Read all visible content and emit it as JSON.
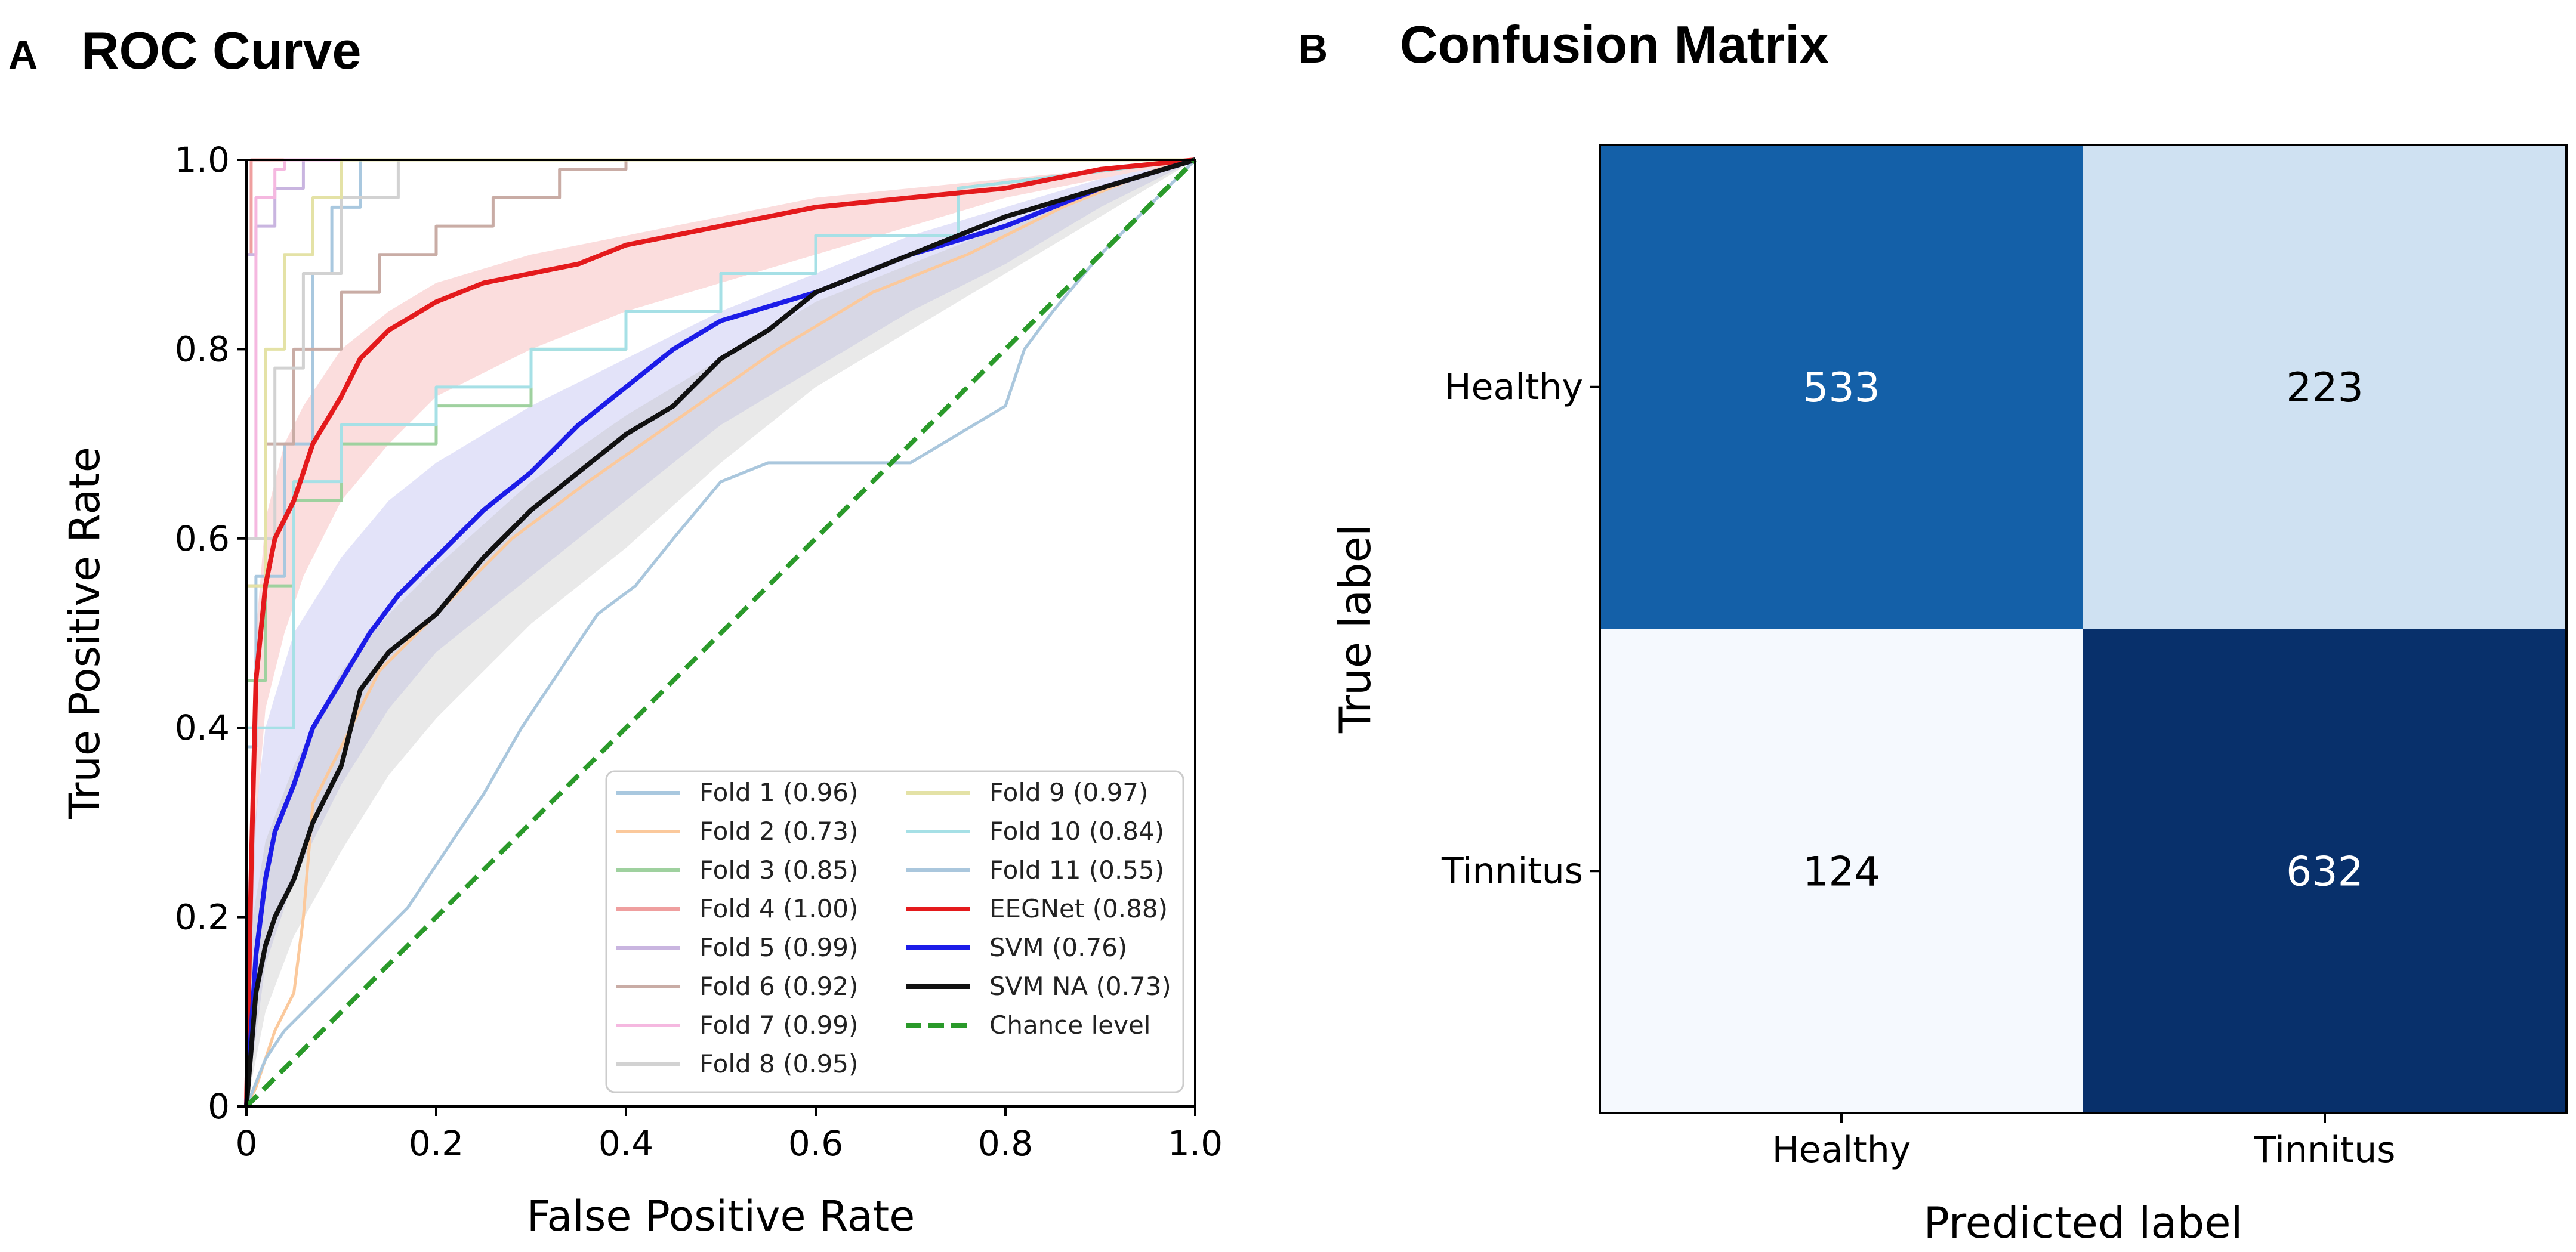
{
  "panels": [
    {
      "letter": "A",
      "title": "ROC Curve"
    },
    {
      "letter": "B",
      "title": "Confusion Matrix"
    }
  ],
  "chart_data": [
    {
      "type": "line",
      "title": "ROC Curve",
      "xlabel": "False Positive Rate",
      "ylabel": "True Positive Rate",
      "xlim": [
        0,
        1
      ],
      "ylim": [
        0,
        1
      ],
      "xticks": [
        0,
        0.2,
        0.4,
        0.6,
        0.8,
        1.0
      ],
      "yticks": [
        0,
        0.2,
        0.4,
        0.6,
        0.8,
        1.0
      ],
      "xtick_labels": [
        "0",
        "0.2",
        "0.4",
        "0.6",
        "0.8",
        "1.0"
      ],
      "ytick_labels": [
        "0",
        "0.2",
        "0.4",
        "0.6",
        "0.8",
        "1.0"
      ],
      "legend_position": "lower-right",
      "bands": [
        {
          "series": "EEGNet (0.88)",
          "color": "#f4a6a6",
          "x": [
            0,
            0.01,
            0.02,
            0.04,
            0.06,
            0.08,
            0.1,
            0.15,
            0.2,
            0.3,
            0.4,
            0.5,
            0.6,
            0.7,
            0.8,
            0.9,
            1.0
          ],
          "upper": [
            0,
            0.5,
            0.62,
            0.7,
            0.74,
            0.77,
            0.8,
            0.84,
            0.87,
            0.9,
            0.92,
            0.94,
            0.96,
            0.97,
            0.98,
            0.99,
            1.0
          ],
          "lower": [
            0,
            0.3,
            0.42,
            0.5,
            0.56,
            0.6,
            0.64,
            0.7,
            0.75,
            0.8,
            0.84,
            0.87,
            0.9,
            0.93,
            0.96,
            0.98,
            1.0
          ]
        },
        {
          "series": "SVM (0.76)",
          "color": "#b5b5ee",
          "x": [
            0,
            0.02,
            0.05,
            0.1,
            0.15,
            0.2,
            0.3,
            0.4,
            0.5,
            0.6,
            0.7,
            0.8,
            0.9,
            1.0
          ],
          "upper": [
            0.22,
            0.4,
            0.5,
            0.58,
            0.64,
            0.68,
            0.74,
            0.79,
            0.84,
            0.88,
            0.92,
            0.95,
            0.98,
            1.0
          ],
          "lower": [
            0,
            0.15,
            0.24,
            0.34,
            0.42,
            0.48,
            0.56,
            0.64,
            0.72,
            0.78,
            0.84,
            0.89,
            0.95,
            1.0
          ]
        },
        {
          "series": "SVM NA (0.73)",
          "color": "#c4c4c4",
          "x": [
            0,
            0.02,
            0.05,
            0.1,
            0.15,
            0.2,
            0.3,
            0.4,
            0.5,
            0.6,
            0.7,
            0.8,
            0.9,
            1.0
          ],
          "upper": [
            0.16,
            0.28,
            0.36,
            0.46,
            0.52,
            0.57,
            0.66,
            0.73,
            0.79,
            0.85,
            0.89,
            0.93,
            0.97,
            1.0
          ],
          "lower": [
            0,
            0.1,
            0.18,
            0.27,
            0.35,
            0.41,
            0.51,
            0.59,
            0.68,
            0.76,
            0.82,
            0.88,
            0.94,
            1.0
          ]
        }
      ],
      "series": [
        {
          "name": "Fold 1 (0.96)",
          "color": "#a9c8df",
          "width": 5,
          "step": true,
          "x": [
            0,
            0,
            0.01,
            0.01,
            0.04,
            0.04,
            0.07,
            0.07,
            0.09,
            0.09,
            0.12,
            0.12,
            1.0
          ],
          "y": [
            0,
            0.38,
            0.38,
            0.56,
            0.56,
            0.7,
            0.7,
            0.88,
            0.88,
            0.95,
            0.95,
            1.0,
            1.0
          ]
        },
        {
          "name": "Fold 2 (0.73)",
          "color": "#fbc99c",
          "width": 5,
          "step": true,
          "x": [
            0,
            0.01,
            0.03,
            0.05,
            0.06,
            0.07,
            0.1,
            0.14,
            0.2,
            0.28,
            0.36,
            0.46,
            0.56,
            0.66,
            0.76,
            0.86,
            0.96,
            1.0
          ],
          "y": [
            0,
            0.02,
            0.08,
            0.12,
            0.2,
            0.32,
            0.38,
            0.46,
            0.52,
            0.6,
            0.66,
            0.73,
            0.8,
            0.86,
            0.9,
            0.95,
            0.99,
            1.0
          ]
        },
        {
          "name": "Fold 3 (0.85)",
          "color": "#9fd19f",
          "width": 5,
          "step": true,
          "x": [
            0,
            0,
            0.02,
            0.02,
            0.05,
            0.05,
            0.1,
            0.1,
            0.2,
            0.2,
            0.3,
            0.3,
            0.4,
            0.4,
            0.5,
            0.5,
            0.6,
            0.6,
            0.75,
            0.75,
            1.0
          ],
          "y": [
            0,
            0.45,
            0.45,
            0.55,
            0.55,
            0.64,
            0.64,
            0.7,
            0.7,
            0.74,
            0.74,
            0.8,
            0.8,
            0.84,
            0.84,
            0.88,
            0.88,
            0.92,
            0.92,
            0.97,
            1.0
          ]
        },
        {
          "name": "Fold 4 (1.00)",
          "color": "#ef9f9f",
          "width": 5,
          "step": true,
          "x": [
            0,
            0,
            0.005,
            0.005,
            1.0
          ],
          "y": [
            0,
            0.9,
            0.9,
            1.0,
            1.0
          ]
        },
        {
          "name": "Fold 5 (0.99)",
          "color": "#c9b5e0",
          "width": 5,
          "step": true,
          "x": [
            0,
            0,
            0.01,
            0.01,
            0.03,
            0.03,
            0.06,
            0.06,
            1.0
          ],
          "y": [
            0,
            0.9,
            0.9,
            0.93,
            0.93,
            0.97,
            0.97,
            1.0,
            1.0
          ]
        },
        {
          "name": "Fold 6 (0.92)",
          "color": "#c9aca5",
          "width": 5,
          "step": true,
          "x": [
            0,
            0,
            0.02,
            0.02,
            0.05,
            0.05,
            0.1,
            0.1,
            0.14,
            0.14,
            0.2,
            0.2,
            0.26,
            0.26,
            0.33,
            0.33,
            0.4,
            0.4,
            1.0
          ],
          "y": [
            0,
            0.55,
            0.55,
            0.7,
            0.7,
            0.8,
            0.8,
            0.86,
            0.86,
            0.9,
            0.9,
            0.93,
            0.93,
            0.96,
            0.96,
            0.99,
            0.99,
            1.0,
            1.0
          ]
        },
        {
          "name": "Fold 7 (0.99)",
          "color": "#f5b8e0",
          "width": 5,
          "step": true,
          "x": [
            0,
            0,
            0.01,
            0.01,
            0.03,
            0.03,
            0.04,
            0.04,
            1.0
          ],
          "y": [
            0,
            0.6,
            0.6,
            0.96,
            0.96,
            0.99,
            0.99,
            1.0,
            1.0
          ]
        },
        {
          "name": "Fold 8 (0.95)",
          "color": "#d2d2d2",
          "width": 5,
          "step": true,
          "x": [
            0,
            0,
            0.03,
            0.03,
            0.06,
            0.06,
            0.1,
            0.1,
            0.16,
            0.16,
            1.0
          ],
          "y": [
            0,
            0.6,
            0.6,
            0.78,
            0.78,
            0.88,
            0.88,
            0.96,
            0.96,
            1.0,
            1.0
          ]
        },
        {
          "name": "Fold 9 (0.97)",
          "color": "#e4e2a6",
          "width": 5,
          "step": true,
          "x": [
            0,
            0,
            0.02,
            0.02,
            0.04,
            0.04,
            0.07,
            0.07,
            0.1,
            0.1,
            1.0
          ],
          "y": [
            0,
            0.55,
            0.55,
            0.8,
            0.8,
            0.9,
            0.9,
            0.96,
            0.96,
            1.0,
            1.0
          ]
        },
        {
          "name": "Fold 10 (0.84)",
          "color": "#a6e0e6",
          "width": 5,
          "step": true,
          "x": [
            0,
            0,
            0.05,
            0.05,
            0.1,
            0.1,
            0.2,
            0.2,
            0.3,
            0.3,
            0.4,
            0.4,
            0.5,
            0.5,
            0.6,
            0.6,
            0.75,
            0.75,
            1.0
          ],
          "y": [
            0,
            0.4,
            0.4,
            0.66,
            0.66,
            0.72,
            0.72,
            0.76,
            0.76,
            0.8,
            0.8,
            0.84,
            0.84,
            0.88,
            0.88,
            0.92,
            0.92,
            0.97,
            1.0
          ]
        },
        {
          "name": "Fold 11 (0.55)",
          "color": "#aac7dd",
          "width": 5,
          "step": true,
          "x": [
            0,
            0.02,
            0.04,
            0.06,
            0.09,
            0.13,
            0.17,
            0.21,
            0.25,
            0.29,
            0.33,
            0.37,
            0.41,
            0.45,
            0.5,
            0.55,
            0.6,
            0.65,
            0.7,
            0.75,
            0.8,
            0.82,
            0.85,
            0.9,
            0.95,
            1.0
          ],
          "y": [
            0,
            0.05,
            0.08,
            0.1,
            0.13,
            0.17,
            0.21,
            0.27,
            0.33,
            0.4,
            0.46,
            0.52,
            0.55,
            0.6,
            0.66,
            0.68,
            0.68,
            0.68,
            0.68,
            0.71,
            0.74,
            0.8,
            0.84,
            0.9,
            0.95,
            1.0
          ]
        },
        {
          "name": "EEGNet (0.88)",
          "color": "#e41a1c",
          "width": 8,
          "step": false,
          "x": [
            0,
            0.005,
            0.01,
            0.02,
            0.03,
            0.05,
            0.07,
            0.1,
            0.12,
            0.15,
            0.2,
            0.25,
            0.3,
            0.35,
            0.4,
            0.5,
            0.6,
            0.7,
            0.8,
            0.9,
            1.0
          ],
          "y": [
            0,
            0.25,
            0.45,
            0.55,
            0.6,
            0.64,
            0.7,
            0.75,
            0.79,
            0.82,
            0.85,
            0.87,
            0.88,
            0.89,
            0.91,
            0.93,
            0.95,
            0.96,
            0.97,
            0.99,
            1.0
          ]
        },
        {
          "name": "SVM (0.76)",
          "color": "#1c1ce8",
          "width": 8,
          "step": false,
          "x": [
            0,
            0.01,
            0.02,
            0.03,
            0.05,
            0.07,
            0.1,
            0.13,
            0.16,
            0.2,
            0.25,
            0.3,
            0.35,
            0.4,
            0.45,
            0.5,
            0.6,
            0.7,
            0.8,
            0.9,
            1.0
          ],
          "y": [
            0,
            0.16,
            0.24,
            0.29,
            0.34,
            0.4,
            0.45,
            0.5,
            0.54,
            0.58,
            0.63,
            0.67,
            0.72,
            0.76,
            0.8,
            0.83,
            0.86,
            0.9,
            0.93,
            0.97,
            1.0
          ]
        },
        {
          "name": "SVM NA (0.73)",
          "color": "#111111",
          "width": 8,
          "step": false,
          "x": [
            0,
            0.01,
            0.02,
            0.03,
            0.05,
            0.07,
            0.1,
            0.12,
            0.15,
            0.2,
            0.25,
            0.3,
            0.35,
            0.4,
            0.45,
            0.5,
            0.55,
            0.6,
            0.7,
            0.8,
            0.9,
            1.0
          ],
          "y": [
            0,
            0.12,
            0.17,
            0.2,
            0.24,
            0.3,
            0.36,
            0.44,
            0.48,
            0.52,
            0.58,
            0.63,
            0.67,
            0.71,
            0.74,
            0.79,
            0.82,
            0.86,
            0.9,
            0.94,
            0.97,
            1.0
          ]
        },
        {
          "name": "Chance level",
          "color": "#2a9a2a",
          "width": 8,
          "step": false,
          "dashed": true,
          "x": [
            0,
            1
          ],
          "y": [
            0,
            1
          ]
        }
      ],
      "legend": [
        "Fold 1 (0.96)",
        "Fold 2 (0.73)",
        "Fold 3 (0.85)",
        "Fold 4 (1.00)",
        "Fold 5 (0.99)",
        "Fold 6 (0.92)",
        "Fold 7 (0.99)",
        "Fold 8 (0.95)",
        "Fold 9 (0.97)",
        "Fold 10 (0.84)",
        "Fold 11 (0.55)",
        "EEGNet (0.88)",
        "SVM (0.76)",
        "SVM NA (0.73)",
        "Chance level"
      ]
    },
    {
      "type": "heatmap",
      "title": "Confusion Matrix",
      "xlabel": "Predicted label",
      "ylabel": "True label",
      "x_categories": [
        "Healthy",
        "Tinnitus"
      ],
      "y_categories": [
        "Healthy",
        "Tinnitus"
      ],
      "values": [
        [
          533,
          223
        ],
        [
          124,
          632
        ]
      ],
      "colors": [
        [
          "#1460a8",
          "#cfe1f2"
        ],
        [
          "#f5f9fe",
          "#08306b"
        ]
      ],
      "text_colors": [
        [
          "#ffffff",
          "#000000"
        ],
        [
          "#000000",
          "#ffffff"
        ]
      ]
    }
  ]
}
